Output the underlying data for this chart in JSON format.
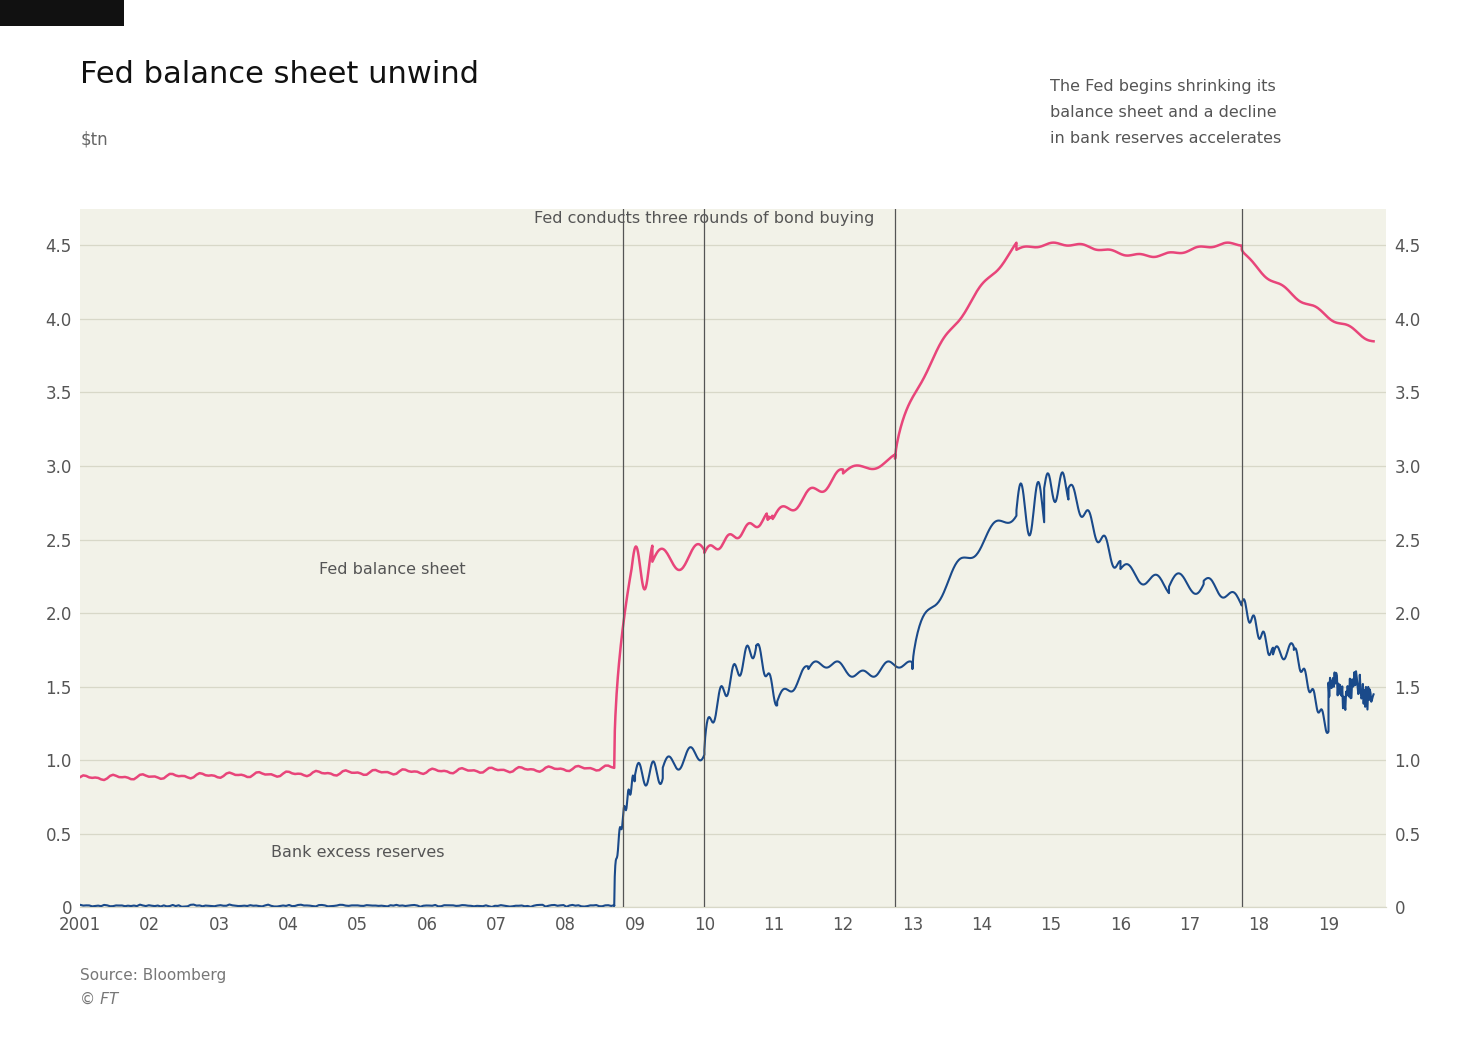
{
  "title": "Fed balance sheet unwind",
  "ylabel": "$tn",
  "source_text": "Source: Bloomberg",
  "copyright_text": "© FT",
  "background_color": "#ffffff",
  "plot_background_color": "#f2f2e8",
  "grid_color": "#d8d8c8",
  "line_color_balance": "#e8457a",
  "line_color_reserves": "#1a4a8a",
  "ylim": [
    0,
    4.75
  ],
  "yticks": [
    0,
    0.5,
    1.0,
    1.5,
    2.0,
    2.5,
    3.0,
    3.5,
    4.0,
    4.5
  ],
  "xlim_start": 2001.0,
  "xlim_end": 2019.83,
  "xtick_labels": [
    "2001",
    "02",
    "03",
    "04",
    "05",
    "06",
    "07",
    "08",
    "09",
    "10",
    "11",
    "12",
    "13",
    "14",
    "15",
    "16",
    "17",
    "18",
    "19"
  ],
  "xtick_positions": [
    2001,
    2002,
    2003,
    2004,
    2005,
    2006,
    2007,
    2008,
    2009,
    2010,
    2011,
    2012,
    2013,
    2014,
    2015,
    2016,
    2017,
    2018,
    2019
  ],
  "vlines": [
    2008.83,
    2010.0,
    2012.75,
    2017.75
  ],
  "vline_color": "#555555",
  "annotation_bond_buying": "Fed conducts three rounds of bond buying",
  "annotation_shrink_line1": "The Fed begins shrinking its",
  "annotation_shrink_line2": "balance sheet and a decline",
  "annotation_shrink_line3": "in bank reserves accelerates",
  "label_balance": "Fed balance sheet",
  "label_reserves": "Bank excess reserves",
  "top_bar_color": "#111111"
}
